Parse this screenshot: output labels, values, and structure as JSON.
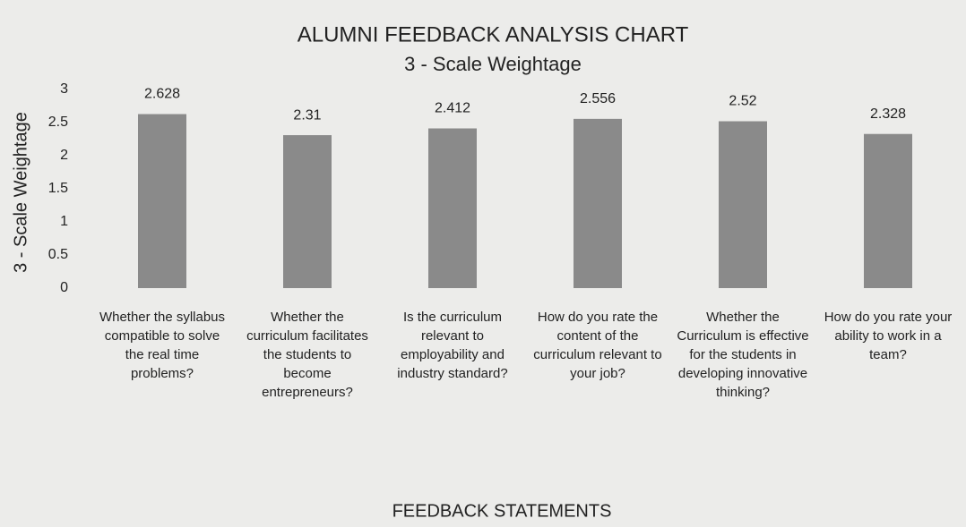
{
  "chart_data": {
    "type": "bar",
    "title": "ALUMNI FEEDBACK ANALYSIS CHART",
    "subtitle": "3 - Scale Weightage",
    "y_label": "3 - Scale Weightage",
    "x_label": "FEEDBACK STATEMENTS",
    "categories": [
      "Whether the syllabus compatible to solve the real time problems?",
      "Whether the curriculum facilitates the students to become entrepreneurs?",
      "Is the curriculum relevant to employability and industry standard?",
      "How do you rate the content of the curriculum relevant to your job?",
      "Whether the Curriculum is effective for the students in developing innovative thinking?",
      "How do you rate your ability to work in a team?"
    ],
    "values": [
      2.628,
      2.31,
      2.412,
      2.556,
      2.52,
      2.328
    ],
    "color": "#8a8a8a",
    "ylim": [
      0,
      3
    ],
    "yticks": [
      0,
      0.5,
      1,
      1.5,
      2,
      2.5,
      3
    ]
  }
}
